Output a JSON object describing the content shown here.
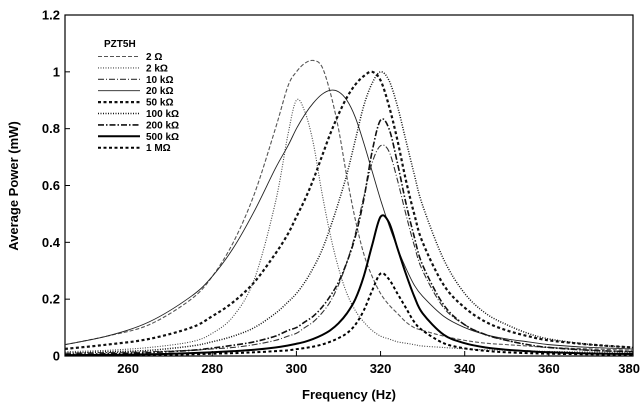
{
  "chart_data": {
    "type": "line",
    "title": "",
    "xlabel": "Frequency (Hz)",
    "ylabel": "Average Power (mW)",
    "xlim": [
      245,
      380
    ],
    "ylim": [
      0,
      1.2
    ],
    "xticks": [
      260,
      280,
      300,
      320,
      340,
      360,
      380
    ],
    "xtick_labels": [
      "260",
      "280",
      "300",
      "320",
      "340",
      "360",
      "380"
    ],
    "yticks": [
      0,
      0.2,
      0.4,
      0.6,
      0.8,
      1,
      1.2
    ],
    "ytick_labels": [
      "0",
      "0.2",
      "0.4",
      "0.6",
      "0.8",
      "1",
      "1.2"
    ],
    "grid": false,
    "legend": {
      "title": "PZT5H",
      "placement": "top-left"
    },
    "x": [
      245,
      255,
      265,
      275,
      280,
      285,
      290,
      295,
      298,
      300,
      302,
      304,
      306,
      308,
      310,
      312,
      314,
      316,
      318,
      320,
      322,
      324,
      326,
      328,
      330,
      335,
      340,
      345,
      350,
      355,
      360,
      370,
      380
    ],
    "series": [
      {
        "name": "2 Ω",
        "color": "#555555",
        "dash": "4 2",
        "width": 1.1,
        "values": [
          0.04,
          0.07,
          0.11,
          0.2,
          0.28,
          0.4,
          0.57,
          0.8,
          0.95,
          1.0,
          1.03,
          1.04,
          1.02,
          0.93,
          0.8,
          0.63,
          0.48,
          0.36,
          0.28,
          0.22,
          0.18,
          0.15,
          0.12,
          0.1,
          0.09,
          0.07,
          0.055,
          0.045,
          0.04,
          0.035,
          0.03,
          0.025,
          0.02
        ]
      },
      {
        "name": "2 kΩ",
        "color": "#444444",
        "dash": "1 1.5",
        "width": 1.1,
        "values": [
          0.015,
          0.02,
          0.03,
          0.05,
          0.08,
          0.14,
          0.27,
          0.54,
          0.78,
          0.9,
          0.86,
          0.75,
          0.58,
          0.43,
          0.31,
          0.22,
          0.16,
          0.12,
          0.09,
          0.07,
          0.06,
          0.05,
          0.045,
          0.04,
          0.035,
          0.03,
          0.025,
          0.022,
          0.02,
          0.018,
          0.016,
          0.014,
          0.012
        ]
      },
      {
        "name": "10 kΩ",
        "color": "#333333",
        "dash": "6 2 1 2",
        "width": 1.1,
        "values": [
          0.01,
          0.012,
          0.015,
          0.02,
          0.025,
          0.03,
          0.04,
          0.055,
          0.07,
          0.08,
          0.1,
          0.12,
          0.15,
          0.19,
          0.25,
          0.33,
          0.43,
          0.56,
          0.68,
          0.74,
          0.72,
          0.62,
          0.5,
          0.39,
          0.3,
          0.17,
          0.11,
          0.075,
          0.055,
          0.04,
          0.03,
          0.02,
          0.015
        ]
      },
      {
        "name": "20 kΩ",
        "color": "#222222",
        "dash": "",
        "width": 0.9,
        "values": [
          0.04,
          0.07,
          0.12,
          0.21,
          0.28,
          0.38,
          0.51,
          0.66,
          0.74,
          0.8,
          0.85,
          0.89,
          0.92,
          0.935,
          0.93,
          0.9,
          0.84,
          0.75,
          0.65,
          0.55,
          0.46,
          0.38,
          0.31,
          0.25,
          0.21,
          0.14,
          0.1,
          0.075,
          0.06,
          0.05,
          0.04,
          0.03,
          0.025
        ]
      },
      {
        "name": "50 kΩ",
        "color": "#111111",
        "dash": "3 2.5",
        "width": 2.2,
        "values": [
          0.025,
          0.04,
          0.06,
          0.1,
          0.14,
          0.19,
          0.26,
          0.36,
          0.43,
          0.49,
          0.55,
          0.62,
          0.7,
          0.78,
          0.85,
          0.91,
          0.955,
          0.985,
          1.0,
          0.97,
          0.88,
          0.76,
          0.62,
          0.5,
          0.4,
          0.25,
          0.17,
          0.12,
          0.09,
          0.07,
          0.055,
          0.04,
          0.03
        ]
      },
      {
        "name": "100 kΩ",
        "color": "#111111",
        "dash": "1 1.5",
        "width": 1.5,
        "values": [
          0.01,
          0.015,
          0.02,
          0.035,
          0.05,
          0.07,
          0.1,
          0.15,
          0.19,
          0.22,
          0.26,
          0.31,
          0.37,
          0.45,
          0.54,
          0.64,
          0.76,
          0.88,
          0.96,
          1.0,
          0.97,
          0.88,
          0.76,
          0.64,
          0.53,
          0.34,
          0.22,
          0.15,
          0.11,
          0.08,
          0.06,
          0.04,
          0.03
        ]
      },
      {
        "name": "200 kΩ",
        "color": "#111111",
        "dash": "6 2 1.5 2",
        "width": 1.6,
        "values": [
          0.005,
          0.008,
          0.012,
          0.02,
          0.028,
          0.038,
          0.05,
          0.07,
          0.09,
          0.1,
          0.12,
          0.14,
          0.17,
          0.21,
          0.26,
          0.33,
          0.42,
          0.55,
          0.72,
          0.83,
          0.8,
          0.68,
          0.54,
          0.42,
          0.32,
          0.18,
          0.11,
          0.075,
          0.055,
          0.04,
          0.03,
          0.02,
          0.015
        ]
      },
      {
        "name": "500 kΩ",
        "color": "#000000",
        "dash": "",
        "width": 2.0,
        "values": [
          0.003,
          0.004,
          0.006,
          0.01,
          0.013,
          0.017,
          0.022,
          0.03,
          0.037,
          0.043,
          0.05,
          0.06,
          0.073,
          0.09,
          0.115,
          0.15,
          0.2,
          0.28,
          0.39,
          0.49,
          0.47,
          0.38,
          0.29,
          0.21,
          0.15,
          0.075,
          0.045,
          0.03,
          0.022,
          0.017,
          0.013,
          0.009,
          0.007
        ]
      },
      {
        "name": "1 MΩ",
        "color": "#000000",
        "dash": "3 2.5",
        "width": 2.0,
        "values": [
          0.002,
          0.003,
          0.004,
          0.006,
          0.008,
          0.01,
          0.013,
          0.017,
          0.02,
          0.024,
          0.028,
          0.033,
          0.04,
          0.05,
          0.063,
          0.08,
          0.11,
          0.16,
          0.23,
          0.29,
          0.27,
          0.22,
          0.17,
          0.12,
          0.09,
          0.045,
          0.027,
          0.018,
          0.013,
          0.01,
          0.008,
          0.006,
          0.004
        ]
      }
    ]
  }
}
